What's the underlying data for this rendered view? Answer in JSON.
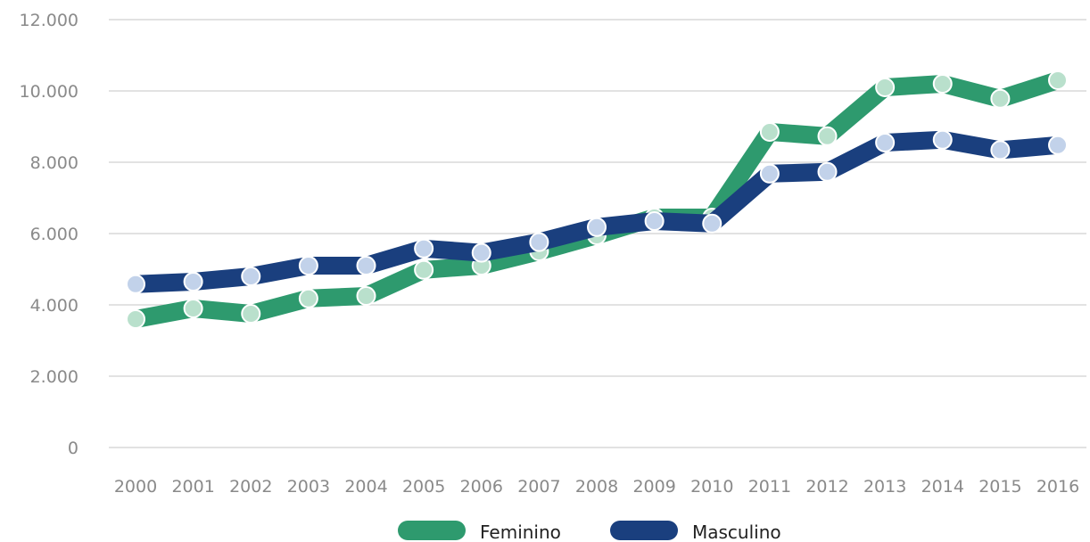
{
  "chart_data": {
    "type": "line",
    "title": "",
    "xlabel": "",
    "ylabel": "",
    "x": [
      "2000",
      "2001",
      "2002",
      "2003",
      "2004",
      "2005",
      "2006",
      "2007",
      "2008",
      "2009",
      "2010",
      "2011",
      "2012",
      "2013",
      "2014",
      "2015",
      "2016"
    ],
    "ylim": [
      0,
      12000
    ],
    "yticks": [
      0,
      2000,
      4000,
      6000,
      8000,
      10000,
      12000
    ],
    "ytick_labels": [
      "0",
      "2.000",
      "4.000",
      "6.000",
      "8.000",
      "10.000",
      "12.000"
    ],
    "grid": "horizontal",
    "legend": "bottom-center",
    "series": [
      {
        "name": "Feminino",
        "color": "#2e9a6e",
        "marker_color": "#b9e0cc",
        "values": [
          3600,
          3900,
          3750,
          4180,
          4250,
          4980,
          5100,
          5500,
          5950,
          6450,
          6450,
          8850,
          8730,
          10100,
          10200,
          9780,
          10300
        ]
      },
      {
        "name": "Masculino",
        "color": "#1a3f7e",
        "marker_color": "#c2d2ea",
        "values": [
          4580,
          4650,
          4800,
          5100,
          5100,
          5580,
          5460,
          5760,
          6180,
          6350,
          6280,
          7680,
          7730,
          8550,
          8630,
          8340,
          8480
        ]
      }
    ]
  }
}
